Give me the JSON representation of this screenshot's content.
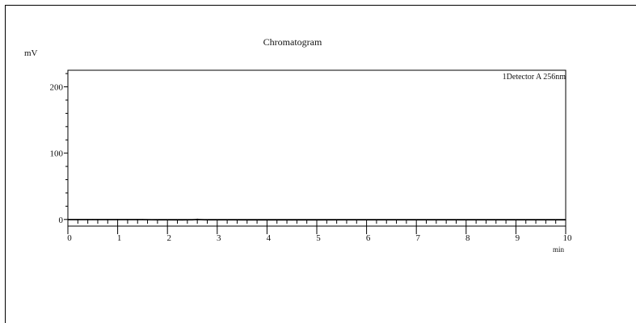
{
  "chart_data": {
    "type": "line",
    "title": "Chromatogram",
    "ylabel": "mV",
    "xlabel": "min",
    "legend": "1Detector A 256nm",
    "legend_placement": "top-right",
    "xlim": [
      0,
      10
    ],
    "ylim": [
      -10,
      225
    ],
    "x_ticks": [
      0,
      1,
      2,
      3,
      4,
      5,
      6,
      7,
      8,
      9,
      10
    ],
    "x_tick_labels": [
      "0",
      "1",
      "2",
      "3",
      "4",
      "5",
      "6",
      "7",
      "8",
      "9",
      "10"
    ],
    "y_ticks": [
      0,
      100,
      200
    ],
    "y_tick_labels": [
      "0",
      "100",
      "200"
    ],
    "grid": false,
    "series": [
      {
        "name": "1Detector A 256nm",
        "x": [
          0,
          0.5,
          1,
          1.5,
          1.8,
          2,
          2.3,
          2.5,
          2.6,
          2.8,
          3,
          3.3,
          3.6,
          4,
          4.5,
          5,
          5.5,
          6,
          6.5,
          7,
          7.5,
          8,
          8.5,
          9,
          9.5,
          10
        ],
        "y": [
          0,
          0,
          0,
          0,
          -0.8,
          -0.6,
          -0.9,
          -0.5,
          0.4,
          -0.7,
          -0.6,
          -0.8,
          -0.9,
          -0.9,
          -0.9,
          -0.9,
          -0.7,
          -0.6,
          -0.7,
          -0.6,
          -0.7,
          -0.6,
          -0.6,
          -0.7,
          -0.6,
          -0.6
        ]
      }
    ]
  }
}
